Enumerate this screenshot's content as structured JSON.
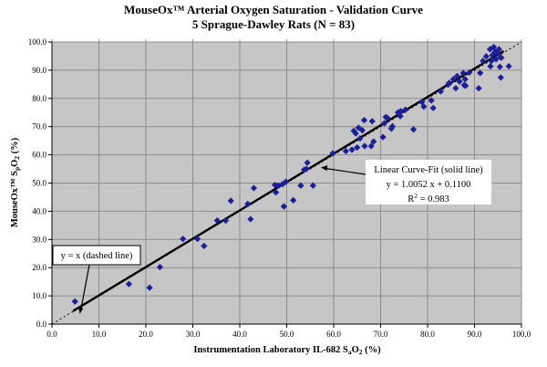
{
  "chart_data": {
    "type": "scatter",
    "title": "MouseOx™ Arterial Oxygen Saturation - Validation Curve",
    "subtitle": "5 Sprague-Dawley Rats (N = 83)",
    "xlabel": "Instrumentation Laboratory IL-682 SaO2 (%)",
    "xlabel_parts": [
      {
        "t": "Instrumentation Laboratory IL-682 S"
      },
      {
        "t": "a",
        "sub": true
      },
      {
        "t": "O"
      },
      {
        "t": "2",
        "sub": true
      },
      {
        "t": " (%)"
      }
    ],
    "ylabel": "MouseOx SpO2 (%)",
    "ylabel_parts": [
      {
        "t": "MouseOx™ S"
      },
      {
        "t": "p",
        "sub": true
      },
      {
        "t": "O"
      },
      {
        "t": "2",
        "sub": true
      },
      {
        "t": " (%)"
      }
    ],
    "xlim": [
      0,
      100
    ],
    "ylim": [
      0,
      100
    ],
    "tick_step": 10,
    "tick_decimals": 1,
    "grid": true,
    "legend_position": "none",
    "fit_line": {
      "label": "Linear Curve-Fit (solid line)",
      "equation": "y = 1.0052 x + 0.1100",
      "slope": 1.0052,
      "intercept": 0.11,
      "r_squared": 0.983,
      "r2_parts": [
        {
          "t": "R"
        },
        {
          "t": "2",
          "sup": true
        },
        {
          "t": " = 0.983"
        }
      ],
      "x_start": 4.5,
      "x_end": 96.2
    },
    "identity_line": {
      "label": "y = x (dashed line)"
    },
    "colors": {
      "point": "#1E1E96",
      "plot_bg": "#C6C6C6",
      "grid": "#8C8C8C",
      "line": "#000000",
      "annotation_bg": "#FFFFFF"
    },
    "points": [
      [
        4.9,
        8.0
      ],
      [
        16.4,
        14.2
      ],
      [
        20.8,
        12.9
      ],
      [
        23.0,
        20.2
      ],
      [
        27.9,
        30.2
      ],
      [
        31.0,
        30.2
      ],
      [
        32.4,
        27.7
      ],
      [
        35.2,
        36.7
      ],
      [
        37.0,
        36.7
      ],
      [
        38.1,
        43.7
      ],
      [
        41.7,
        42.6
      ],
      [
        42.3,
        37.2
      ],
      [
        43.0,
        48.2
      ],
      [
        47.5,
        49.3
      ],
      [
        47.7,
        46.7
      ],
      [
        48.2,
        49.1
      ],
      [
        49.1,
        49.6
      ],
      [
        49.4,
        41.7
      ],
      [
        49.8,
        50.4
      ],
      [
        51.4,
        43.9
      ],
      [
        53.0,
        49.1
      ],
      [
        53.7,
        54.7
      ],
      [
        54.2,
        55.0
      ],
      [
        54.4,
        57.2
      ],
      [
        55.6,
        49.1
      ],
      [
        59.8,
        60.5
      ],
      [
        62.6,
        61.3
      ],
      [
        63.9,
        61.8
      ],
      [
        64.3,
        68.5
      ],
      [
        64.7,
        67.6
      ],
      [
        65.0,
        62.6
      ],
      [
        65.3,
        69.6
      ],
      [
        65.6,
        65.8
      ],
      [
        66.1,
        68.7
      ],
      [
        66.5,
        72.3
      ],
      [
        66.6,
        63.1
      ],
      [
        68.0,
        63.1
      ],
      [
        68.2,
        71.9
      ],
      [
        68.5,
        64.7
      ],
      [
        70.5,
        66.3
      ],
      [
        70.8,
        71.2
      ],
      [
        71.1,
        73.4
      ],
      [
        71.5,
        73.0
      ],
      [
        72.3,
        69.3
      ],
      [
        72.5,
        70.1
      ],
      [
        73.7,
        75.0
      ],
      [
        74.2,
        73.7
      ],
      [
        74.3,
        75.5
      ],
      [
        75.3,
        76.0
      ],
      [
        77.0,
        69.0
      ],
      [
        78.8,
        78.7
      ],
      [
        79.2,
        77.1
      ],
      [
        80.8,
        79.3
      ],
      [
        81.2,
        76.6
      ],
      [
        82.8,
        82.5
      ],
      [
        84.4,
        84.9
      ],
      [
        84.6,
        85.5
      ],
      [
        85.5,
        86.8
      ],
      [
        86.0,
        83.6
      ],
      [
        86.3,
        87.9
      ],
      [
        86.8,
        86.0
      ],
      [
        87.6,
        89.0
      ],
      [
        87.8,
        84.7
      ],
      [
        88.0,
        86.8
      ],
      [
        88.1,
        84.5
      ],
      [
        88.9,
        89.2
      ],
      [
        90.9,
        83.6
      ],
      [
        91.2,
        89.0
      ],
      [
        91.8,
        93.3
      ],
      [
        92.5,
        94.9
      ],
      [
        93.3,
        97.4
      ],
      [
        93.4,
        91.4
      ],
      [
        93.6,
        93.3
      ],
      [
        93.8,
        95.3
      ],
      [
        94.1,
        98.2
      ],
      [
        94.4,
        96.5
      ],
      [
        94.6,
        93.9
      ],
      [
        95.1,
        95.7
      ],
      [
        95.2,
        97.4
      ],
      [
        95.4,
        91.2
      ],
      [
        95.6,
        87.4
      ],
      [
        95.7,
        94.4
      ],
      [
        97.3,
        91.4
      ]
    ]
  }
}
